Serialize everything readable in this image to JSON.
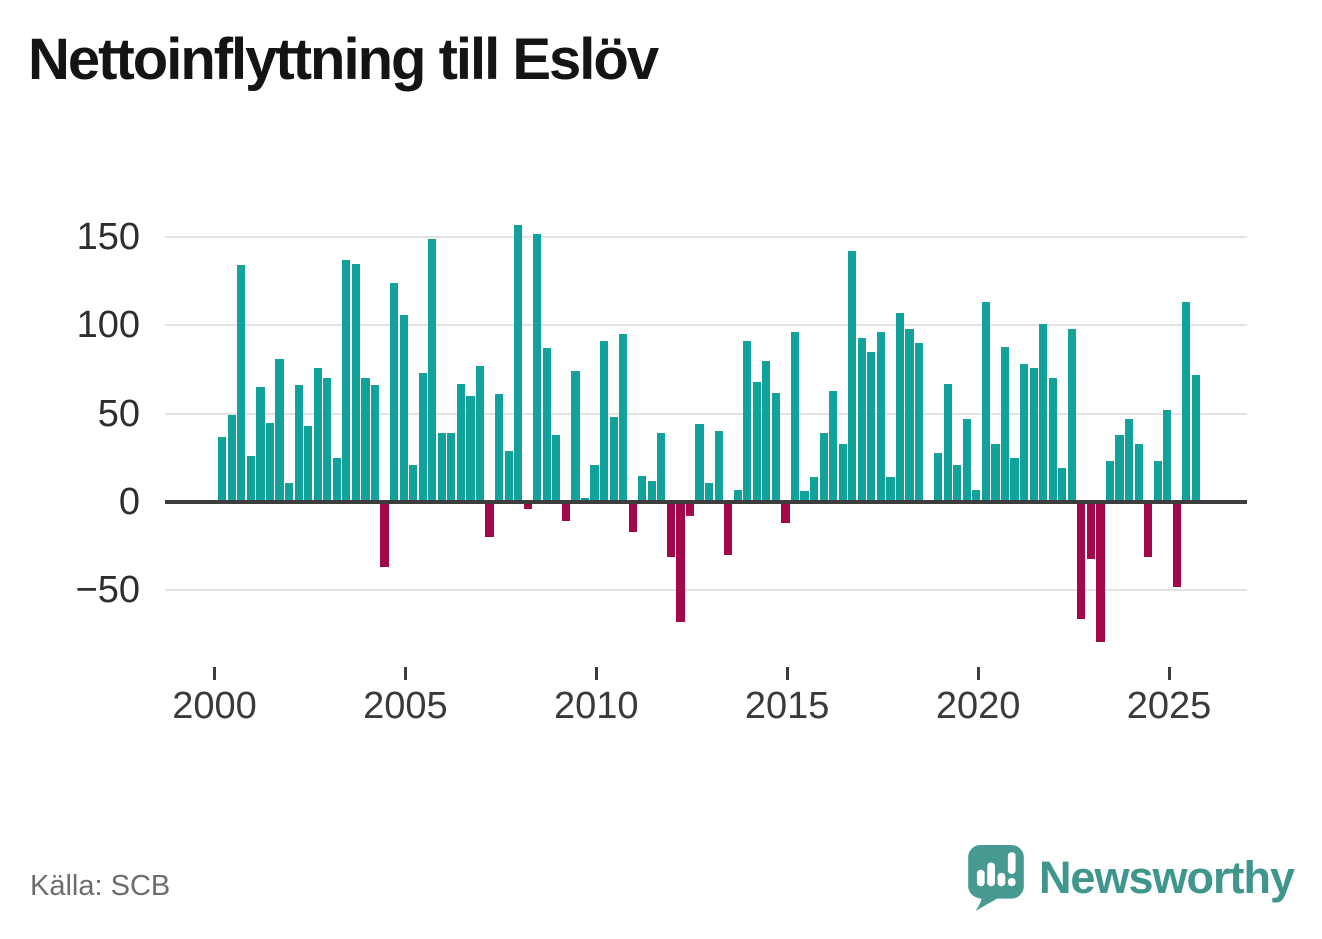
{
  "page": {
    "title": "Nettoinflyttning till Eslöv",
    "source": "Källa: SCB"
  },
  "branding": {
    "name": "Newsworthy",
    "logo_icon": "newsworthy-speech-bubble-bar-chart-icon",
    "brand_color": "#469a91"
  },
  "colors": {
    "positive_bar": "#12a19b",
    "negative_bar": "#a2094a",
    "axis": "#3d3d3d",
    "gridline": "#e3e3e3",
    "axis_text": "#2e2e2e",
    "muted_text": "#6d6d6d"
  },
  "chart_data": {
    "type": "bar",
    "title": "Nettoinflyttning till Eslöv",
    "source": "Källa: SCB",
    "frequency": "quarterly",
    "start": "2000-Q1",
    "end": "2025-Q3",
    "series_name": "Nettoinflyttning",
    "values": [
      37,
      49,
      134,
      26,
      65,
      45,
      81,
      11,
      66,
      43,
      76,
      70,
      25,
      137,
      135,
      70,
      66,
      -37,
      124,
      106,
      21,
      73,
      149,
      39,
      39,
      67,
      60,
      77,
      -20,
      61,
      29,
      157,
      -4,
      152,
      87,
      38,
      -11,
      74,
      2,
      21,
      91,
      48,
      95,
      -17,
      15,
      12,
      39,
      -31,
      -68,
      -8,
      44,
      11,
      40,
      -30,
      7,
      91,
      68,
      80,
      62,
      -12,
      96,
      6,
      14,
      39,
      63,
      33,
      142,
      93,
      85,
      96,
      14,
      107,
      98,
      90,
      0,
      28,
      67,
      21,
      47,
      7,
      113,
      33,
      88,
      25,
      78,
      76,
      101,
      70,
      19,
      98,
      -66,
      -32,
      -79,
      23,
      38,
      47,
      33,
      -31,
      23,
      52,
      -48,
      113,
      72
    ],
    "y_ticks": [
      150,
      100,
      50,
      0,
      -50
    ],
    "y_tick_labels": [
      "150",
      "100",
      "50",
      "0",
      "−50"
    ],
    "x_ticks": [
      2000,
      2005,
      2010,
      2015,
      2020,
      2025
    ],
    "ylim": [
      -85,
      165
    ],
    "grid": true,
    "legend": "none",
    "positive_color": "#12a19b",
    "negative_color": "#a2094a"
  }
}
